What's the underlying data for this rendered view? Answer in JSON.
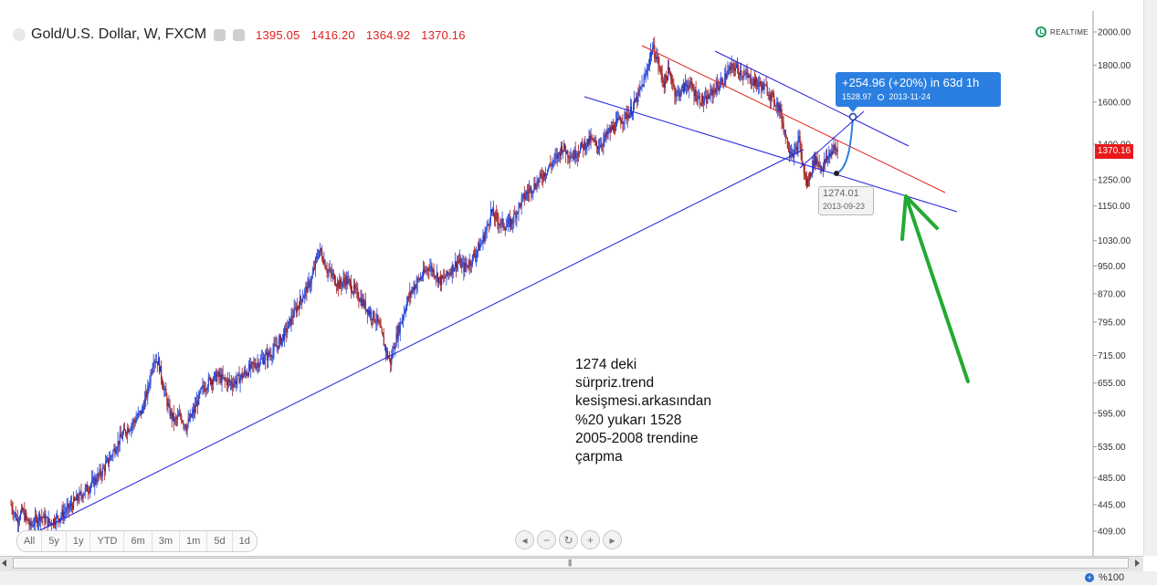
{
  "header": {
    "title": "Gold/U.S. Dollar, W, FXCM",
    "open": "1395.05",
    "high": "1416.20",
    "low": "1364.92",
    "close": "1370.16"
  },
  "realtime_label": "REALTIME",
  "current_price_tag": "1370.16",
  "measure_box": {
    "change": "+254.96 (+20%) in 63d 1h",
    "target_price": "1528.97",
    "target_date": "2013-11-24"
  },
  "low_marker": {
    "price": "1274.01",
    "date": "2013-09-23"
  },
  "note_lines": [
    "1274 deki",
    "sürpriz.trend",
    "kesişmesi.arkasından",
    "%20 yukarı 1528",
    "2005-2008 trendine",
    "çarpma"
  ],
  "range_buttons": [
    "All",
    "5y",
    "1y",
    "YTD",
    "6m",
    "3m",
    "1m",
    "5d",
    "1d"
  ],
  "nav_buttons": [
    "◂",
    "−",
    "↻",
    "+",
    "▸"
  ],
  "status": {
    "zoom": "%100"
  },
  "colors": {
    "candle_up": "#1f3fd6",
    "candle_down": "#a01818",
    "trendline_blue": "#2020e0",
    "trendline_red": "#e02424",
    "arrow_green": "#22aa33",
    "price_tag": "#e8191b",
    "measure_box": "#2b7fe0"
  },
  "chart_data": {
    "type": "candlestick",
    "symbol": "Gold/U.S. Dollar",
    "timeframe": "W",
    "source": "FXCM",
    "y_axis": {
      "scale": "log",
      "ticks": [
        "2000.00",
        "1800.00",
        "1600.00",
        "1400.00",
        "1250.00",
        "1150.00",
        "1030.00",
        "950.00",
        "870.00",
        "795.00",
        "715.00",
        "655.00",
        "595.00",
        "535.00",
        "485.00",
        "445.00",
        "409.00"
      ]
    },
    "close_path": [
      [
        0,
        445
      ],
      [
        6,
        425
      ],
      [
        12,
        435
      ],
      [
        20,
        415
      ],
      [
        30,
        430
      ],
      [
        40,
        420
      ],
      [
        50,
        428
      ],
      [
        60,
        440
      ],
      [
        70,
        455
      ],
      [
        80,
        470
      ],
      [
        88,
        482
      ],
      [
        96,
        498
      ],
      [
        104,
        520
      ],
      [
        112,
        545
      ],
      [
        120,
        565
      ],
      [
        128,
        580
      ],
      [
        136,
        600
      ],
      [
        142,
        640
      ],
      [
        148,
        710
      ],
      [
        153,
        700
      ],
      [
        158,
        650
      ],
      [
        164,
        600
      ],
      [
        170,
        580
      ],
      [
        176,
        590
      ],
      [
        182,
        570
      ],
      [
        190,
        600
      ],
      [
        198,
        640
      ],
      [
        206,
        660
      ],
      [
        214,
        670
      ],
      [
        222,
        660
      ],
      [
        230,
        655
      ],
      [
        240,
        670
      ],
      [
        250,
        690
      ],
      [
        260,
        705
      ],
      [
        270,
        720
      ],
      [
        278,
        745
      ],
      [
        285,
        770
      ],
      [
        292,
        810
      ],
      [
        300,
        850
      ],
      [
        306,
        880
      ],
      [
        312,
        910
      ],
      [
        316,
        960
      ],
      [
        320,
        1000
      ],
      [
        324,
        975
      ],
      [
        328,
        940
      ],
      [
        334,
        920
      ],
      [
        340,
        895
      ],
      [
        348,
        910
      ],
      [
        356,
        880
      ],
      [
        362,
        860
      ],
      [
        368,
        835
      ],
      [
        374,
        815
      ],
      [
        380,
        800
      ],
      [
        385,
        760
      ],
      [
        390,
        720
      ],
      [
        394,
        700
      ],
      [
        398,
        740
      ],
      [
        404,
        790
      ],
      [
        410,
        840
      ],
      [
        416,
        880
      ],
      [
        422,
        905
      ],
      [
        428,
        925
      ],
      [
        434,
        950
      ],
      [
        440,
        930
      ],
      [
        446,
        905
      ],
      [
        452,
        920
      ],
      [
        458,
        945
      ],
      [
        464,
        965
      ],
      [
        470,
        945
      ],
      [
        476,
        960
      ],
      [
        482,
        990
      ],
      [
        488,
        1020
      ],
      [
        494,
        1070
      ],
      [
        498,
        1130
      ],
      [
        502,
        1110
      ],
      [
        508,
        1090
      ],
      [
        514,
        1080
      ],
      [
        520,
        1095
      ],
      [
        526,
        1140
      ],
      [
        532,
        1180
      ],
      [
        538,
        1210
      ],
      [
        544,
        1230
      ],
      [
        550,
        1260
      ],
      [
        556,
        1290
      ],
      [
        562,
        1320
      ],
      [
        568,
        1350
      ],
      [
        572,
        1390
      ],
      [
        578,
        1360
      ],
      [
        584,
        1350
      ],
      [
        590,
        1380
      ],
      [
        596,
        1400
      ],
      [
        602,
        1420
      ],
      [
        608,
        1390
      ],
      [
        614,
        1410
      ],
      [
        620,
        1450
      ],
      [
        626,
        1480
      ],
      [
        632,
        1510
      ],
      [
        638,
        1530
      ],
      [
        644,
        1560
      ],
      [
        650,
        1620
      ],
      [
        656,
        1700
      ],
      [
        660,
        1760
      ],
      [
        662,
        1830
      ],
      [
        666,
        1900
      ],
      [
        670,
        1850
      ],
      [
        674,
        1760
      ],
      [
        678,
        1700
      ],
      [
        682,
        1760
      ],
      [
        686,
        1720
      ],
      [
        690,
        1640
      ],
      [
        696,
        1660
      ],
      [
        702,
        1700
      ],
      [
        708,
        1660
      ],
      [
        714,
        1620
      ],
      [
        720,
        1600
      ],
      [
        726,
        1640
      ],
      [
        732,
        1680
      ],
      [
        738,
        1700
      ],
      [
        744,
        1760
      ],
      [
        750,
        1790
      ],
      [
        756,
        1770
      ],
      [
        762,
        1740
      ],
      [
        768,
        1720
      ],
      [
        774,
        1700
      ],
      [
        780,
        1680
      ],
      [
        786,
        1660
      ],
      [
        790,
        1620
      ],
      [
        794,
        1600
      ],
      [
        798,
        1560
      ],
      [
        802,
        1480
      ],
      [
        806,
        1400
      ],
      [
        810,
        1370
      ],
      [
        814,
        1360
      ],
      [
        818,
        1420
      ],
      [
        822,
        1300
      ],
      [
        826,
        1230
      ],
      [
        830,
        1280
      ],
      [
        834,
        1340
      ],
      [
        838,
        1320
      ],
      [
        842,
        1300
      ],
      [
        846,
        1330
      ],
      [
        850,
        1360
      ],
      [
        854,
        1380
      ],
      [
        858,
        1370
      ]
    ],
    "annotations": {
      "measure_change": "+254.96 (+20%) in 63d 1h",
      "measure_target": 1528.97,
      "measure_target_date": "2013-11-24",
      "marked_low": 1274.01,
      "marked_low_date": "2013-09-23",
      "last_close": 1370.16
    }
  }
}
